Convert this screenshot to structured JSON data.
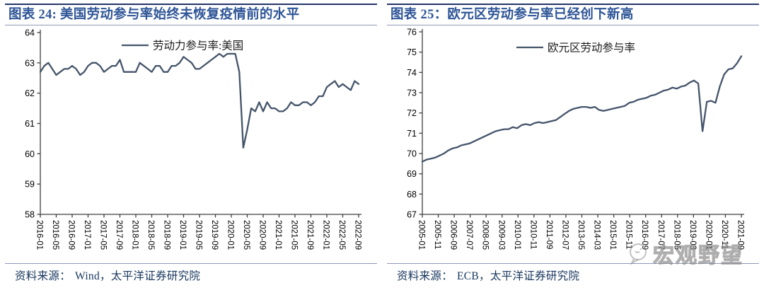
{
  "panels": [
    {
      "title": "图表 24: 美国劳动参与率始终未恢复疫情前的水平",
      "source_label": "资料来源：",
      "source": "Wind，太平洋证券研究院"
    },
    {
      "title": "图表 25：欧元区劳动参与率已经创下新高",
      "source_label": "资料来源：",
      "source": "ECB，太平洋证券研究院"
    }
  ],
  "watermark": {
    "text": "宏观野望",
    "logo": "speech-bubble-face"
  },
  "colors": {
    "line": "#44546A",
    "axis": "#3f3f3f",
    "tick_label": "#000000",
    "title_text": "#2E5597",
    "source_text": "#17365D",
    "rule_dark": "#24356B",
    "rule_light": "#9097B8",
    "watermark": "#b0b0b0"
  },
  "chart_data": [
    {
      "type": "line",
      "title": "图表 24: 美国劳动参与率始终未恢复疫情前的水平",
      "legend_position": "top-center",
      "grid": false,
      "ylim": [
        58,
        64
      ],
      "ytick_step": 1,
      "ytick_labels": [
        "58",
        "59",
        "60",
        "61",
        "62",
        "63",
        "64"
      ],
      "x_labels": [
        "2016-01",
        "2016-05",
        "2016-09",
        "2017-01",
        "2017-05",
        "2017-09",
        "2018-01",
        "2018-05",
        "2018-09",
        "2019-01",
        "2019-05",
        "2019-09",
        "2020-01",
        "2020-05",
        "2020-09",
        "2021-01",
        "2021-05",
        "2021-09",
        "2022-01",
        "2022-05",
        "2022-09"
      ],
      "x_label_rotation": 90,
      "series": [
        {
          "name": "劳动力参与率:美国",
          "frequency": "monthly",
          "values": [
            62.7,
            62.9,
            63.0,
            62.8,
            62.6,
            62.7,
            62.8,
            62.8,
            62.9,
            62.8,
            62.6,
            62.7,
            62.9,
            63.0,
            63.0,
            62.9,
            62.7,
            62.8,
            62.9,
            62.9,
            63.1,
            62.7,
            62.7,
            62.7,
            62.7,
            63.0,
            62.9,
            62.8,
            62.7,
            62.9,
            62.9,
            62.7,
            62.7,
            62.9,
            62.9,
            63.0,
            63.2,
            63.1,
            63.0,
            62.8,
            62.8,
            62.9,
            63.0,
            63.1,
            63.2,
            63.3,
            63.2,
            63.3,
            63.3,
            63.3,
            62.7,
            60.2,
            60.8,
            61.5,
            61.4,
            61.7,
            61.4,
            61.7,
            61.5,
            61.5,
            61.4,
            61.4,
            61.5,
            61.7,
            61.6,
            61.6,
            61.7,
            61.7,
            61.6,
            61.7,
            61.9,
            61.9,
            62.2,
            62.3,
            62.4,
            62.2,
            62.3,
            62.2,
            62.1,
            62.4,
            62.3
          ]
        }
      ]
    },
    {
      "type": "line",
      "title": "图表 25：欧元区劳动参与率已经创下新高",
      "legend_position": "top-center",
      "grid": false,
      "ylim": [
        67,
        76
      ],
      "ytick_step": 1,
      "ytick_labels": [
        "67",
        "68",
        "69",
        "70",
        "71",
        "72",
        "73",
        "74",
        "75",
        "76"
      ],
      "x_labels": [
        "2005-01",
        "2005-11",
        "2006-09",
        "2007-07",
        "2008-05",
        "2009-03",
        "2010-01",
        "2010-11",
        "2011-09",
        "2012-07",
        "2013-05",
        "2014-03",
        "2015-01",
        "2015-11",
        "2016-09",
        "2017-07",
        "2018-05",
        "2019-03",
        "2020-01",
        "2020-11",
        "2021-09"
      ],
      "x_label_rotation": 90,
      "series": [
        {
          "name": "欧元区劳动参与率",
          "frequency": "quarterly",
          "values": [
            69.6,
            69.7,
            69.75,
            69.8,
            69.9,
            70.0,
            70.15,
            70.25,
            70.3,
            70.4,
            70.45,
            70.5,
            70.6,
            70.7,
            70.8,
            70.9,
            71.0,
            71.1,
            71.15,
            71.2,
            71.2,
            71.3,
            71.25,
            71.4,
            71.45,
            71.4,
            71.5,
            71.55,
            71.5,
            71.55,
            71.6,
            71.65,
            71.8,
            71.95,
            72.1,
            72.2,
            72.25,
            72.3,
            72.3,
            72.25,
            72.3,
            72.15,
            72.1,
            72.15,
            72.2,
            72.25,
            72.3,
            72.35,
            72.5,
            72.55,
            72.65,
            72.7,
            72.75,
            72.85,
            72.9,
            73.0,
            73.1,
            73.15,
            73.25,
            73.2,
            73.3,
            73.35,
            73.5,
            73.6,
            73.45,
            71.1,
            72.55,
            72.6,
            72.5,
            73.3,
            73.9,
            74.15,
            74.2,
            74.45,
            74.8
          ]
        }
      ]
    }
  ]
}
